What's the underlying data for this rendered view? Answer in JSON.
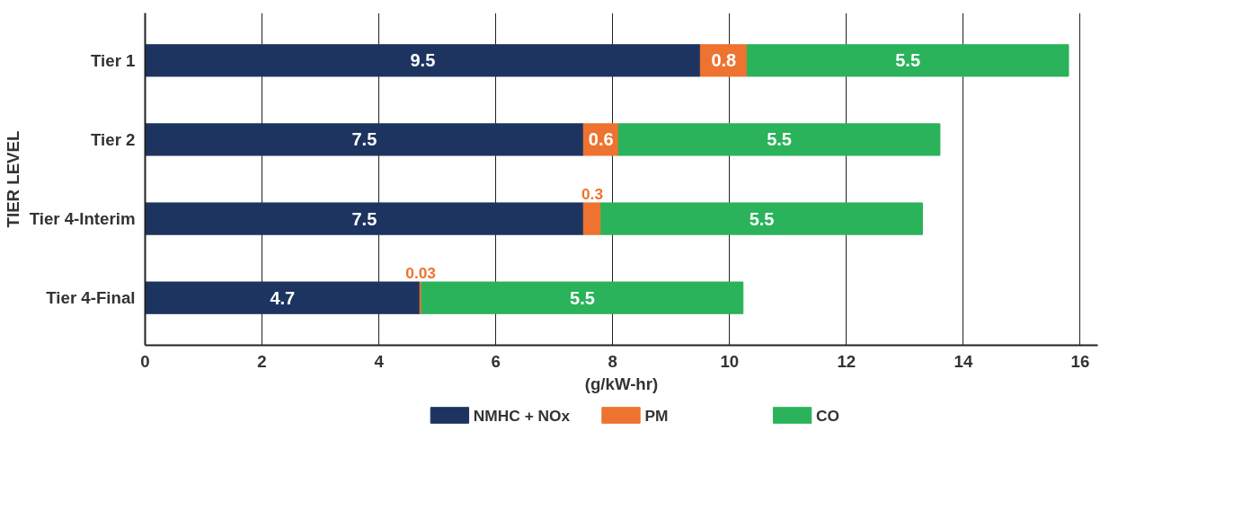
{
  "chart_data": {
    "type": "bar",
    "orientation": "horizontal",
    "stacked": true,
    "xlabel": "(g/kW-hr)",
    "ylabel": "TIER LEVEL",
    "categories": [
      "Tier 1",
      "Tier 2",
      "Tier 4-Interim",
      "Tier 4-Final"
    ],
    "series": [
      {
        "name": "NMHC + NOx",
        "color": "#1d3461",
        "values": [
          9.5,
          7.5,
          7.5,
          4.7
        ]
      },
      {
        "name": "PM",
        "color": "#ee7330",
        "values": [
          0.8,
          0.6,
          0.3,
          0.03
        ]
      },
      {
        "name": "CO",
        "color": "#2ab35a",
        "values": [
          5.5,
          5.5,
          5.5,
          5.5
        ]
      }
    ],
    "xlim": [
      0,
      16.3
    ],
    "xticks": [
      0,
      2,
      4,
      6,
      8,
      10,
      12,
      14,
      16
    ],
    "grid": "x",
    "legend": "bottom",
    "data_labels": true
  }
}
